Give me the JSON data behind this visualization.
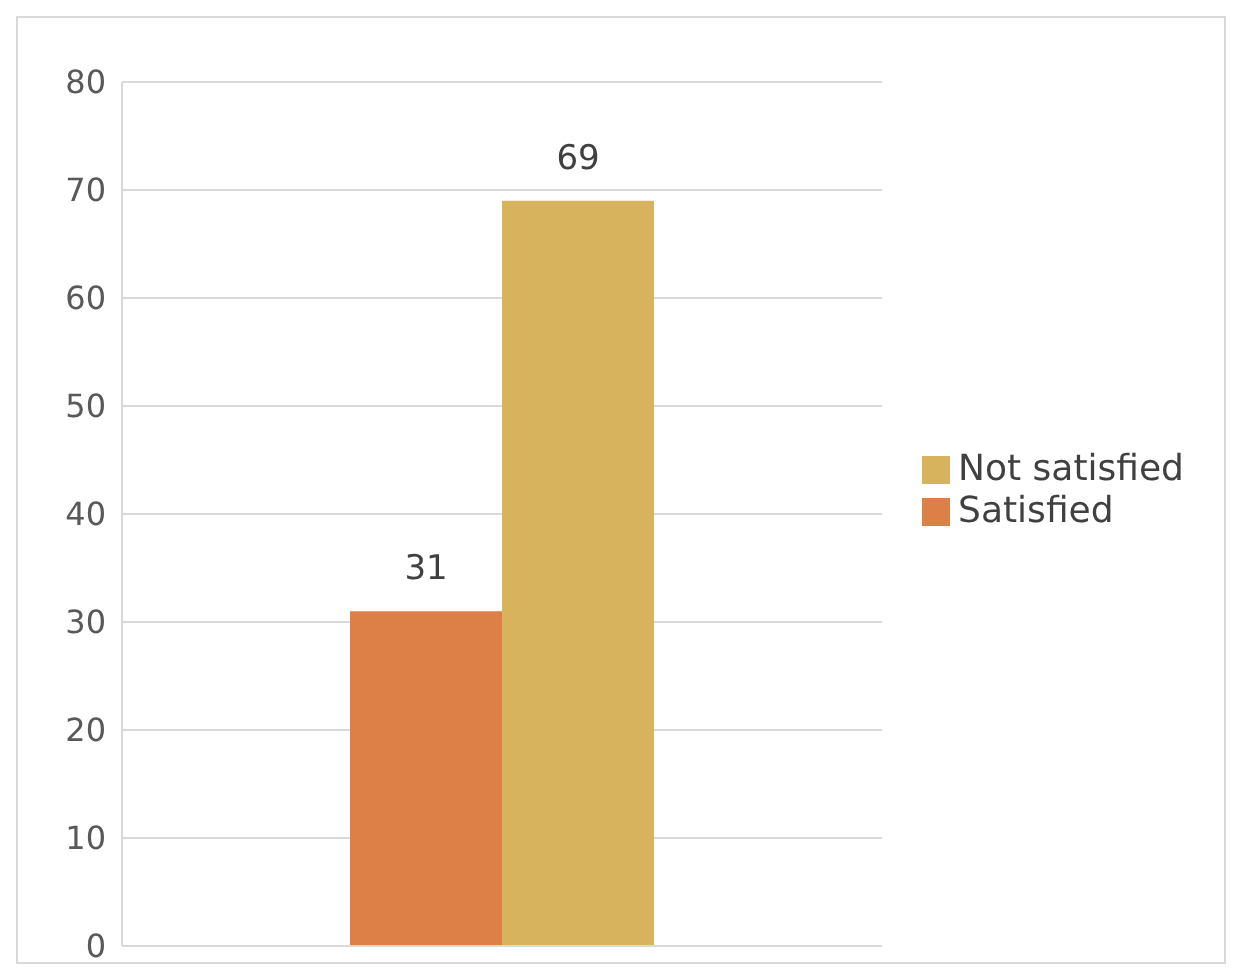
{
  "chart_data": {
    "type": "bar",
    "categories": [
      null
    ],
    "series": [
      {
        "name": "Satisfied",
        "color": "#dd8047",
        "values": [
          31
        ]
      },
      {
        "name": "Not satisfied",
        "color": "#d6b35c",
        "values": [
          69
        ]
      }
    ],
    "ylim": [
      0,
      80
    ],
    "yticks": [
      0,
      10,
      20,
      30,
      40,
      50,
      60,
      70,
      80
    ],
    "grid": "y",
    "legend": "right",
    "data_labels": true
  }
}
